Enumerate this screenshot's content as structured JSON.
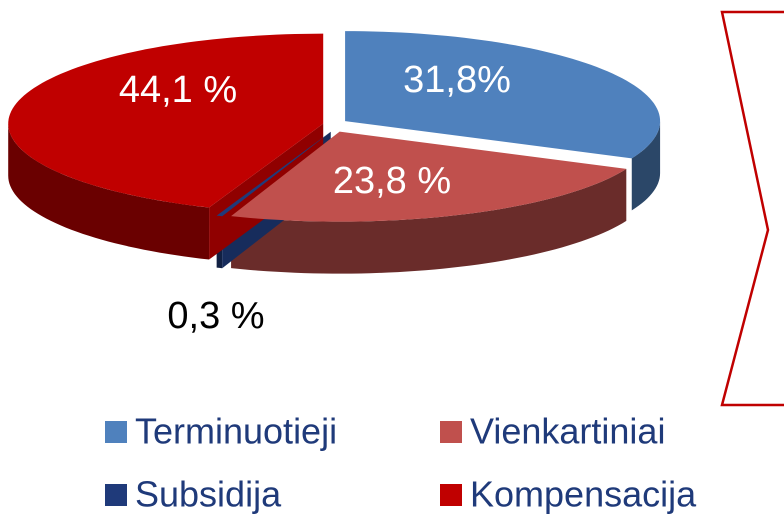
{
  "chart_data": {
    "type": "pie",
    "categories": [
      "Terminuotieji",
      "Vienkartiniai",
      "Subsidija",
      "Kompensacija"
    ],
    "values": [
      31.8,
      23.8,
      0.3,
      44.1
    ],
    "value_labels": [
      "31,8%",
      "23,8 %",
      "0,3 %",
      "44,1 %"
    ],
    "colors": [
      "#4f81bd",
      "#c0504d",
      "#1f3a7a",
      "#c00000"
    ],
    "legend": "bottom"
  }
}
